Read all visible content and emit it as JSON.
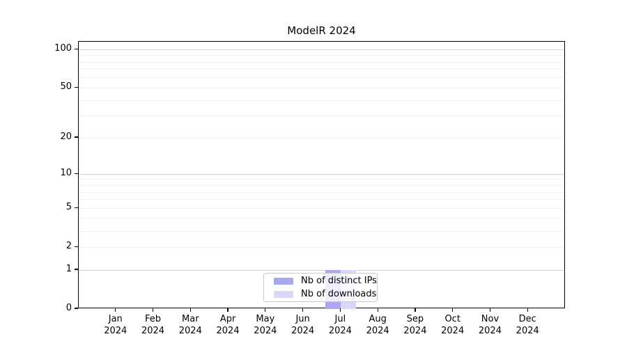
{
  "figure": {
    "title": "ModelR 2024"
  },
  "chart_data": {
    "type": "bar",
    "title": "ModelR 2024",
    "xlabel": "",
    "ylabel": "",
    "categories": [
      "Jan 2024",
      "Feb 2024",
      "Mar 2024",
      "Apr 2024",
      "May 2024",
      "Jun 2024",
      "Jul 2024",
      "Aug 2024",
      "Sep 2024",
      "Oct 2024",
      "Nov 2024",
      "Dec 2024"
    ],
    "series": [
      {
        "name": "Nb of distinct IPs",
        "color": "#a8a8ec",
        "values": [
          0,
          0,
          0,
          0,
          0,
          0,
          1,
          0,
          0,
          0,
          0,
          0
        ]
      },
      {
        "name": "Nb of downloads",
        "color": "#d8d8f6",
        "values": [
          0,
          0,
          0,
          0,
          0,
          0,
          1,
          0,
          0,
          0,
          0,
          0
        ]
      }
    ],
    "yscale": "log1p",
    "ylim": [
      0,
      115
    ],
    "y_ticks": [
      0,
      1,
      2,
      5,
      10,
      20,
      50,
      100
    ],
    "gridlines": {
      "major": [
        1,
        10,
        100
      ],
      "minor": [
        2,
        3,
        4,
        5,
        6,
        7,
        8,
        9,
        20,
        30,
        40,
        50,
        60,
        70,
        80,
        90
      ]
    },
    "grid": true,
    "legend_position": "lower-center"
  },
  "colors": {
    "spine": "#000000",
    "grid_major": "#d2d2d2",
    "grid_minor": "#eeeeee",
    "text": "#000000",
    "legend_border": "#c9c9c9"
  }
}
